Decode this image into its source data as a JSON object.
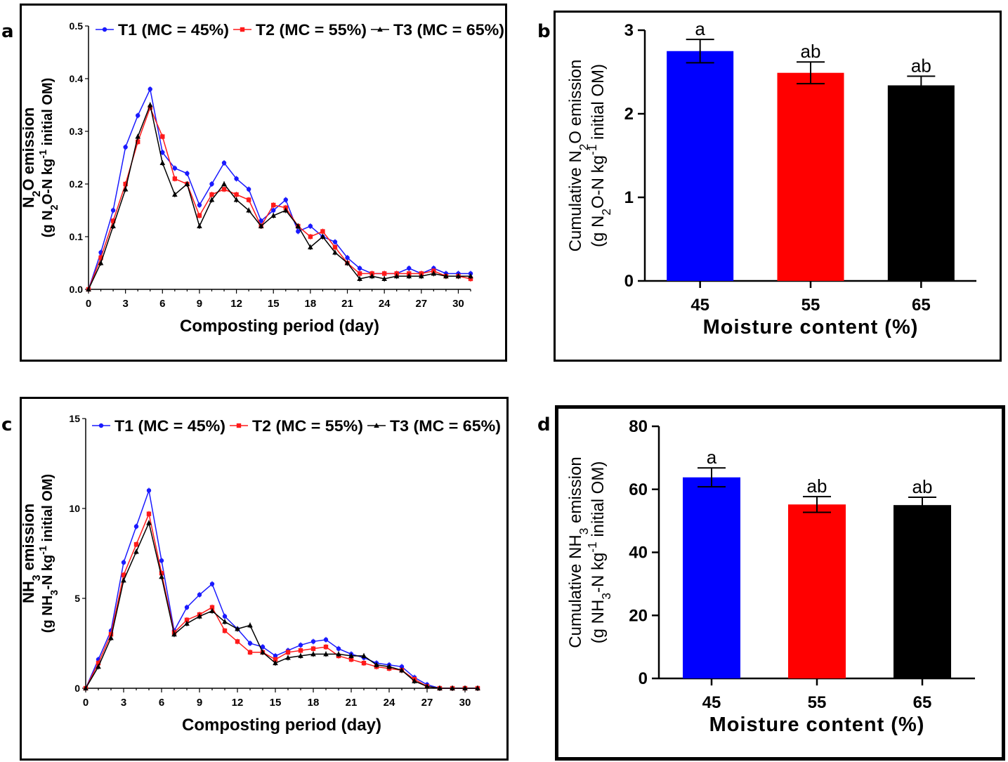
{
  "figure": {
    "panels": {
      "a": "a",
      "b": "b",
      "c": "c",
      "d": "d"
    }
  },
  "chart_data": [
    {
      "id": "a",
      "type": "line",
      "xlabel": "Composting period (day)",
      "ylabel_line1": "N2O emission",
      "ylabel_line2": "(g N2O-N kg-1 initial OM)",
      "xlim": [
        0,
        31
      ],
      "ylim": [
        0,
        0.5
      ],
      "xticks": [
        0,
        3,
        6,
        9,
        12,
        15,
        18,
        21,
        24,
        27,
        30
      ],
      "yticks": [
        0.0,
        0.1,
        0.2,
        0.3,
        0.4,
        0.5
      ],
      "ytick_labels": [
        "0.0",
        "0.1",
        "0.2",
        "0.3",
        "0.4",
        "0.5"
      ],
      "x": [
        0,
        1,
        2,
        3,
        4,
        5,
        6,
        7,
        8,
        9,
        10,
        11,
        12,
        13,
        14,
        15,
        16,
        17,
        18,
        19,
        20,
        21,
        22,
        23,
        24,
        25,
        26,
        27,
        28,
        29,
        30,
        31
      ],
      "series": [
        {
          "name": "T1 (MC = 45%)",
          "color": "#1a1aff",
          "marker": "circle",
          "values": [
            0,
            0.07,
            0.15,
            0.27,
            0.33,
            0.38,
            0.26,
            0.23,
            0.22,
            0.16,
            0.2,
            0.24,
            0.21,
            0.19,
            0.13,
            0.15,
            0.17,
            0.11,
            0.12,
            0.1,
            0.09,
            0.06,
            0.04,
            0.03,
            0.03,
            0.03,
            0.04,
            0.03,
            0.04,
            0.03,
            0.03,
            0.03
          ]
        },
        {
          "name": "T2 (MC = 55%)",
          "color": "#ff1a1a",
          "marker": "square",
          "values": [
            0,
            0.06,
            0.13,
            0.2,
            0.28,
            0.345,
            0.29,
            0.21,
            0.2,
            0.14,
            0.18,
            0.19,
            0.18,
            0.17,
            0.12,
            0.16,
            0.155,
            0.12,
            0.1,
            0.11,
            0.08,
            0.05,
            0.03,
            0.03,
            0.03,
            0.03,
            0.03,
            0.03,
            0.035,
            0.025,
            0.025,
            0.02
          ]
        },
        {
          "name": "T3 (MC = 65%)",
          "color": "#000000",
          "marker": "triangle",
          "values": [
            0,
            0.05,
            0.12,
            0.19,
            0.29,
            0.35,
            0.24,
            0.18,
            0.2,
            0.12,
            0.17,
            0.2,
            0.17,
            0.15,
            0.12,
            0.14,
            0.15,
            0.12,
            0.08,
            0.1,
            0.07,
            0.05,
            0.02,
            0.025,
            0.02,
            0.025,
            0.025,
            0.025,
            0.03,
            0.025,
            0.025,
            0.025
          ]
        }
      ]
    },
    {
      "id": "b",
      "type": "bar",
      "xlabel": "Moisture content (%)",
      "ylabel_line1": "Cumulative N2O emission",
      "ylabel_line2": "(g N2O-N kg-1 initial OM)",
      "ylim": [
        0,
        3
      ],
      "yticks": [
        0,
        1,
        2,
        3
      ],
      "categories": [
        "45",
        "55",
        "65"
      ],
      "values": [
        2.75,
        2.49,
        2.34
      ],
      "errors": [
        0.14,
        0.13,
        0.11
      ],
      "labels": [
        "a",
        "ab",
        "ab"
      ],
      "colors": [
        "#0000ff",
        "#ff0000",
        "#000000"
      ]
    },
    {
      "id": "c",
      "type": "line",
      "xlabel": "Composting period (day)",
      "ylabel_line1": "NH3 emission",
      "ylabel_line2": "(g NH3-N kg-1 initial OM)",
      "xlim": [
        0,
        31
      ],
      "ylim": [
        0,
        15
      ],
      "xticks": [
        0,
        3,
        6,
        9,
        12,
        15,
        18,
        21,
        24,
        27,
        30
      ],
      "yticks": [
        0,
        5,
        10,
        15
      ],
      "ytick_labels": [
        "0",
        "5",
        "10",
        "15"
      ],
      "x": [
        0,
        1,
        2,
        3,
        4,
        5,
        6,
        7,
        8,
        9,
        10,
        11,
        12,
        13,
        14,
        15,
        16,
        17,
        18,
        19,
        20,
        21,
        22,
        23,
        24,
        25,
        26,
        27,
        28,
        29,
        30,
        31
      ],
      "series": [
        {
          "name": "T1 (MC = 45%)",
          "color": "#1a1aff",
          "marker": "circle",
          "values": [
            0,
            1.6,
            3.2,
            7.0,
            9.0,
            11.0,
            7.1,
            3.2,
            4.5,
            5.2,
            5.8,
            4.0,
            3.3,
            2.5,
            2.3,
            1.8,
            2.1,
            2.4,
            2.6,
            2.7,
            2.2,
            1.9,
            1.7,
            1.4,
            1.3,
            1.2,
            0.6,
            0.2,
            0,
            0,
            0,
            0
          ]
        },
        {
          "name": "T2 (MC = 55%)",
          "color": "#ff1a1a",
          "marker": "square",
          "values": [
            0,
            1.4,
            3.0,
            6.3,
            8.0,
            9.7,
            6.4,
            3.1,
            3.8,
            4.1,
            4.5,
            3.2,
            2.6,
            2.0,
            2.0,
            1.6,
            2.0,
            2.1,
            2.2,
            2.3,
            1.8,
            1.6,
            1.4,
            1.2,
            1.1,
            1.0,
            0.5,
            0.1,
            0,
            0,
            0,
            0
          ]
        },
        {
          "name": "T3 (MC = 65%)",
          "color": "#000000",
          "marker": "triangle",
          "values": [
            0,
            1.2,
            2.8,
            6.0,
            7.6,
            9.2,
            6.2,
            3.0,
            3.6,
            4.0,
            4.3,
            3.7,
            3.3,
            3.5,
            2.0,
            1.4,
            1.7,
            1.8,
            1.9,
            1.9,
            1.9,
            1.8,
            1.8,
            1.3,
            1.2,
            1.0,
            0.4,
            0.1,
            0,
            0,
            0,
            0
          ]
        }
      ]
    },
    {
      "id": "d",
      "type": "bar",
      "xlabel": "Moisture content (%)",
      "ylabel_line1": "Cumulative NH3 emission",
      "ylabel_line2": "(g NH3-N kg-1 initial OM)",
      "ylim": [
        0,
        80
      ],
      "yticks": [
        0,
        20,
        40,
        60,
        80
      ],
      "categories": [
        "45",
        "55",
        "65"
      ],
      "values": [
        63.8,
        55.2,
        55.0
      ],
      "errors": [
        3.0,
        2.5,
        2.5
      ],
      "labels": [
        "a",
        "ab",
        "ab"
      ],
      "colors": [
        "#0000ff",
        "#ff0000",
        "#000000"
      ]
    }
  ]
}
